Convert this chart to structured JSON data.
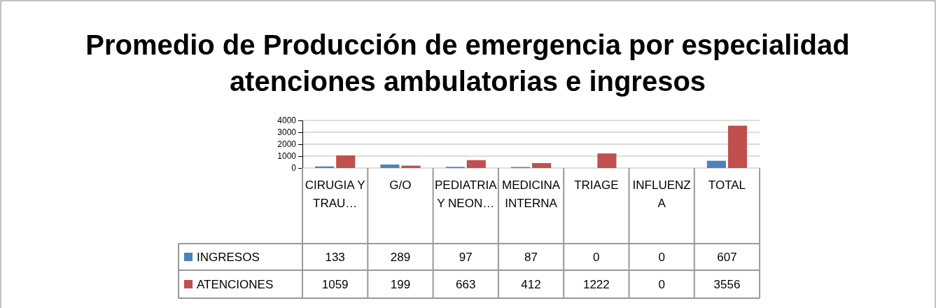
{
  "chart_data": {
    "type": "bar",
    "title": "Promedio de Producción de emergencia por especialidad atenciones ambulatorias e ingresos",
    "categories": [
      "CIRUGIA Y TRAU…",
      "G/O",
      "PEDIATRIA Y NEON…",
      "MEDICINA INTERNA",
      "TRIAGE",
      "INFLUENZA",
      "TOTAL"
    ],
    "series": [
      {
        "name": "INGRESOS",
        "color": "#4f81bd",
        "values": [
          133,
          289,
          97,
          87,
          0,
          0,
          607
        ]
      },
      {
        "name": "ATENCIONES",
        "color": "#c0504d",
        "values": [
          1059,
          199,
          663,
          412,
          1222,
          0,
          3556
        ]
      }
    ],
    "ylim": [
      0,
      4000
    ],
    "yticks": [
      0,
      1000,
      2000,
      3000,
      4000
    ],
    "grid": "y",
    "legend": "bottom left",
    "data_labels": true
  }
}
